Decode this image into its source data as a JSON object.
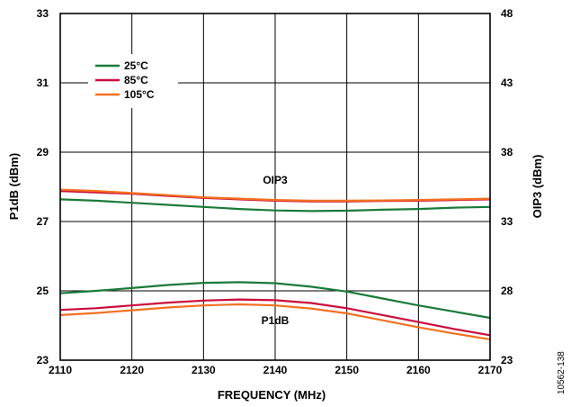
{
  "chart_data": {
    "type": "line",
    "xlabel": "FREQUENCY (MHz)",
    "ylabel_left": "P1dB (dBm)",
    "ylabel_right": "OIP3 (dBm)",
    "xlim": [
      2110,
      2170
    ],
    "ylim_left": [
      23,
      33
    ],
    "ylim_right": [
      23,
      48
    ],
    "x_ticks": [
      2110,
      2120,
      2130,
      2140,
      2150,
      2160,
      2170
    ],
    "y_ticks_left": [
      23,
      25,
      27,
      29,
      31,
      33
    ],
    "y_ticks_right": [
      23,
      28,
      33,
      38,
      43,
      48
    ],
    "grid": true,
    "legend_position": "top-left",
    "legend": [
      {
        "label": "25°C",
        "color": "#1a7a3a"
      },
      {
        "label": "85°C",
        "color": "#cc0c3c"
      },
      {
        "label": "105°C",
        "color": "#f37021"
      }
    ],
    "annotations": [
      "OIP3",
      "P1dB"
    ],
    "figure_id": "10562-138",
    "x": [
      2110,
      2115,
      2120,
      2125,
      2130,
      2135,
      2140,
      2145,
      2150,
      2155,
      2160,
      2165,
      2170
    ],
    "series": [
      {
        "name": "25°C",
        "group": "P1dB",
        "axis": "left",
        "color": "#1a7a3a",
        "values": [
          24.93,
          25.0,
          25.08,
          25.17,
          25.23,
          25.25,
          25.22,
          25.12,
          24.98,
          24.78,
          24.58,
          24.4,
          24.22
        ]
      },
      {
        "name": "85°C",
        "group": "P1dB",
        "axis": "left",
        "color": "#cc0c3c",
        "values": [
          24.45,
          24.5,
          24.58,
          24.66,
          24.72,
          24.75,
          24.73,
          24.65,
          24.5,
          24.3,
          24.1,
          23.9,
          23.72
        ]
      },
      {
        "name": "105°C",
        "group": "P1dB",
        "axis": "left",
        "color": "#f37021",
        "values": [
          24.3,
          24.36,
          24.44,
          24.52,
          24.58,
          24.61,
          24.58,
          24.49,
          24.35,
          24.15,
          23.95,
          23.77,
          23.6
        ]
      },
      {
        "name": "25°C",
        "group": "OIP3",
        "axis": "right",
        "color": "#1a7a3a",
        "values": [
          34.6,
          34.5,
          34.35,
          34.2,
          34.05,
          33.9,
          33.8,
          33.75,
          33.78,
          33.85,
          33.9,
          34.0,
          34.05
        ]
      },
      {
        "name": "85°C",
        "group": "OIP3",
        "axis": "right",
        "color": "#cc0c3c",
        "values": [
          35.2,
          35.1,
          35.0,
          34.85,
          34.7,
          34.6,
          34.5,
          34.45,
          34.45,
          34.48,
          34.5,
          34.55,
          34.6
        ]
      },
      {
        "name": "105°C",
        "group": "OIP3",
        "axis": "right",
        "color": "#f37021",
        "values": [
          35.3,
          35.2,
          35.05,
          34.9,
          34.75,
          34.65,
          34.55,
          34.5,
          34.5,
          34.52,
          34.55,
          34.6,
          34.65
        ]
      }
    ]
  }
}
